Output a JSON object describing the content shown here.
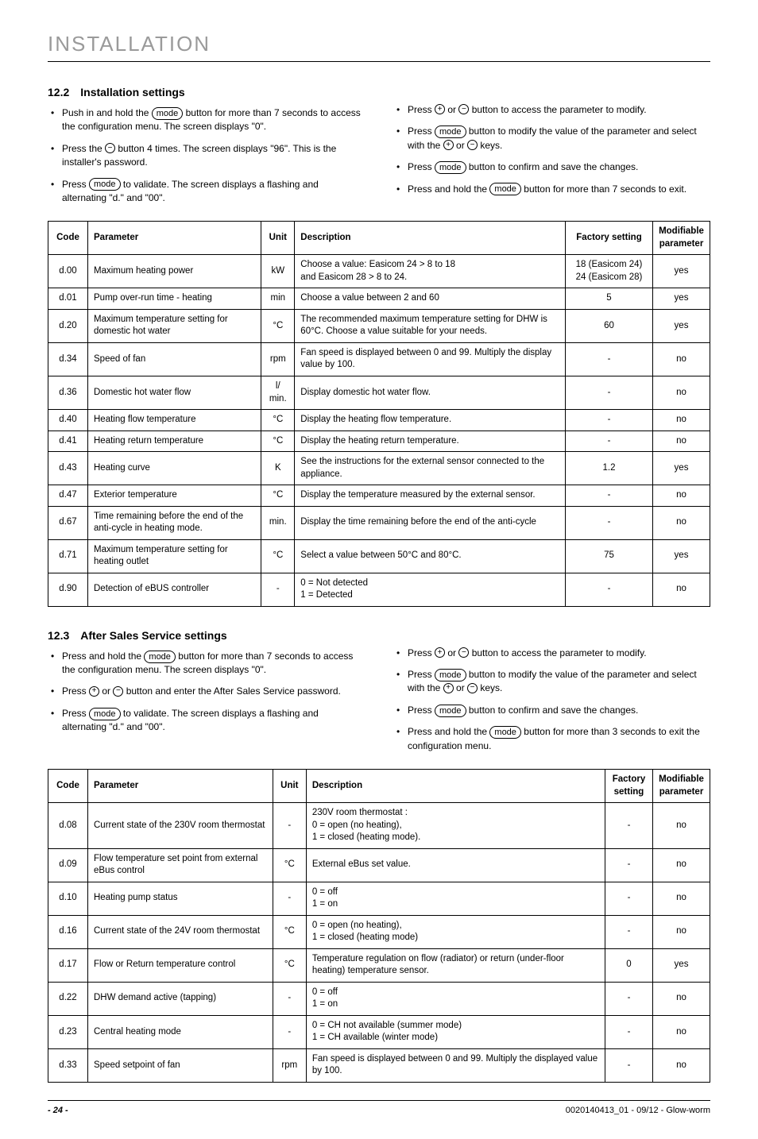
{
  "page": {
    "title": "INSTALLATION",
    "footer_doc": "0020140413_01 - 09/12 - Glow-worm",
    "footer_page": "- 24 -"
  },
  "button_labels": {
    "mode": "mode",
    "plus": "+",
    "minus": "−"
  },
  "section_122": {
    "number": "12.2",
    "title": "Installation settings",
    "left_bullets": [
      {
        "pre": "Push in and hold the ",
        "btn": "mode",
        "post": " button for more than 7 seconds to access the configuration menu. The screen displays \"0\"."
      },
      {
        "pre": "Press the ",
        "btn": "minus",
        "post": " button 4 times. The screen displays \"96\". This is the installer's password."
      },
      {
        "pre": "Press ",
        "btn": "mode",
        "post": " to validate. The screen displays a flashing and alternating \"d.\" and \"00\"."
      }
    ],
    "right_bullets": [
      {
        "text": "Press {plus} or {minus} button to access the parameter to modify."
      },
      {
        "text": "Press {mode} button to modify the value of the parameter and select with the {plus} or {minus} keys."
      },
      {
        "text": "Press {mode} button to confirm and save the changes."
      },
      {
        "text": "Press and hold the {mode} button for more than 7 seconds to exit."
      }
    ]
  },
  "table1": {
    "columns": [
      "Code",
      "Parameter",
      "Unit",
      "Description",
      "Factory setting",
      "Modifiable parameter"
    ],
    "rows": [
      [
        "d.00",
        "Maximum heating power",
        "kW",
        "Choose a value: Easicom 24 > 8 to 18\nand Easicom 28 > 8 to 24.",
        "18 (Easicom 24)\n24 (Easicom 28)",
        "yes"
      ],
      [
        "d.01",
        "Pump over-run time - heating",
        "min",
        "Choose a value between 2 and 60",
        "5",
        "yes"
      ],
      [
        "d.20",
        "Maximum temperature setting for domestic hot water",
        "°C",
        "The recommended maximum temperature setting for DHW is 60°C. Choose a value suitable for your needs.",
        "60",
        "yes"
      ],
      [
        "d.34",
        "Speed of fan",
        "rpm",
        "Fan speed is displayed between 0 and 99. Multiply the display value by 100.",
        "-",
        "no"
      ],
      [
        "d.36",
        "Domestic hot water flow",
        "l/\nmin.",
        "Display domestic hot water flow.",
        "-",
        "no"
      ],
      [
        "d.40",
        "Heating flow temperature",
        "°C",
        "Display the heating flow temperature.",
        "-",
        "no"
      ],
      [
        "d.41",
        "Heating return temperature",
        "°C",
        "Display the heating return temperature.",
        "-",
        "no"
      ],
      [
        "d.43",
        "Heating curve",
        "K",
        "See the instructions for the external sensor connected to the appliance.",
        "1.2",
        "yes"
      ],
      [
        "d.47",
        "Exterior temperature",
        "°C",
        "Display the temperature measured by the external sensor.",
        "-",
        "no"
      ],
      [
        "d.67",
        "Time remaining before the end of the anti-cycle in heating mode.",
        "min.",
        "Display the time remaining before the end of the anti-cycle",
        "-",
        "no"
      ],
      [
        "d.71",
        "Maximum temperature setting for heating outlet",
        "°C",
        "Select a value between 50°C and 80°C.",
        "75",
        "yes"
      ],
      [
        "d.90",
        "Detection of eBUS controller",
        "-",
        "0 = Not detected\n1 = Detected",
        "-",
        "no"
      ]
    ]
  },
  "section_123": {
    "number": "12.3",
    "title": "After Sales Service settings",
    "left_bullets": [
      {
        "text": "Press and hold the {mode} button for more than 7 seconds to access the configuration menu. The screen displays \"0\"."
      },
      {
        "text": "Press {plus} or {minus} button and enter the After Sales Service password."
      },
      {
        "text": "Press {mode} to validate. The screen displays a flashing and alternating \"d.\" and \"00\"."
      }
    ],
    "right_bullets": [
      {
        "text": "Press {plus} or {minus} button to access the parameter to modify."
      },
      {
        "text": "Press {mode} button to modify the value of the parameter and select with the {plus} or {minus} keys."
      },
      {
        "text": "Press {mode} button to confirm and save the changes."
      },
      {
        "text": "Press and hold the {mode} button for more than 3 seconds to exit the configuration menu."
      }
    ]
  },
  "table2": {
    "columns": [
      "Code",
      "Parameter",
      "Unit",
      "Description",
      "Factory setting",
      "Modifiable parameter"
    ],
    "rows": [
      [
        "d.08",
        "Current state of the 230V room thermostat",
        "-",
        "230V room thermostat :\n0 = open (no heating),\n1 = closed (heating mode).",
        "-",
        "no"
      ],
      [
        "d.09",
        "Flow temperature set point from external eBus control",
        "°C",
        "External eBus set value.",
        "-",
        "no"
      ],
      [
        "d.10",
        "Heating pump status",
        "-",
        "0 = off\n1 = on",
        "-",
        "no"
      ],
      [
        "d.16",
        "Current state of the 24V room thermostat",
        "°C",
        "0 = open (no heating),\n1 = closed (heating mode)",
        "-",
        "no"
      ],
      [
        "d.17",
        "Flow or Return temperature control",
        "°C",
        "Temperature regulation on flow (radiator) or return (under-floor heating) temperature sensor.",
        "0",
        "yes"
      ],
      [
        "d.22",
        "DHW demand active (tapping)",
        "-",
        "0 = off\n1 = on",
        "-",
        "no"
      ],
      [
        "d.23",
        "Central heating mode",
        "-",
        "0 = CH not available (summer mode)\n1 = CH available (winter mode)",
        "-",
        "no"
      ],
      [
        "d.33",
        "Speed setpoint of fan",
        "rpm",
        "Fan speed is displayed between 0 and 99. Multiply the displayed value by 100.",
        "-",
        "no"
      ]
    ]
  }
}
